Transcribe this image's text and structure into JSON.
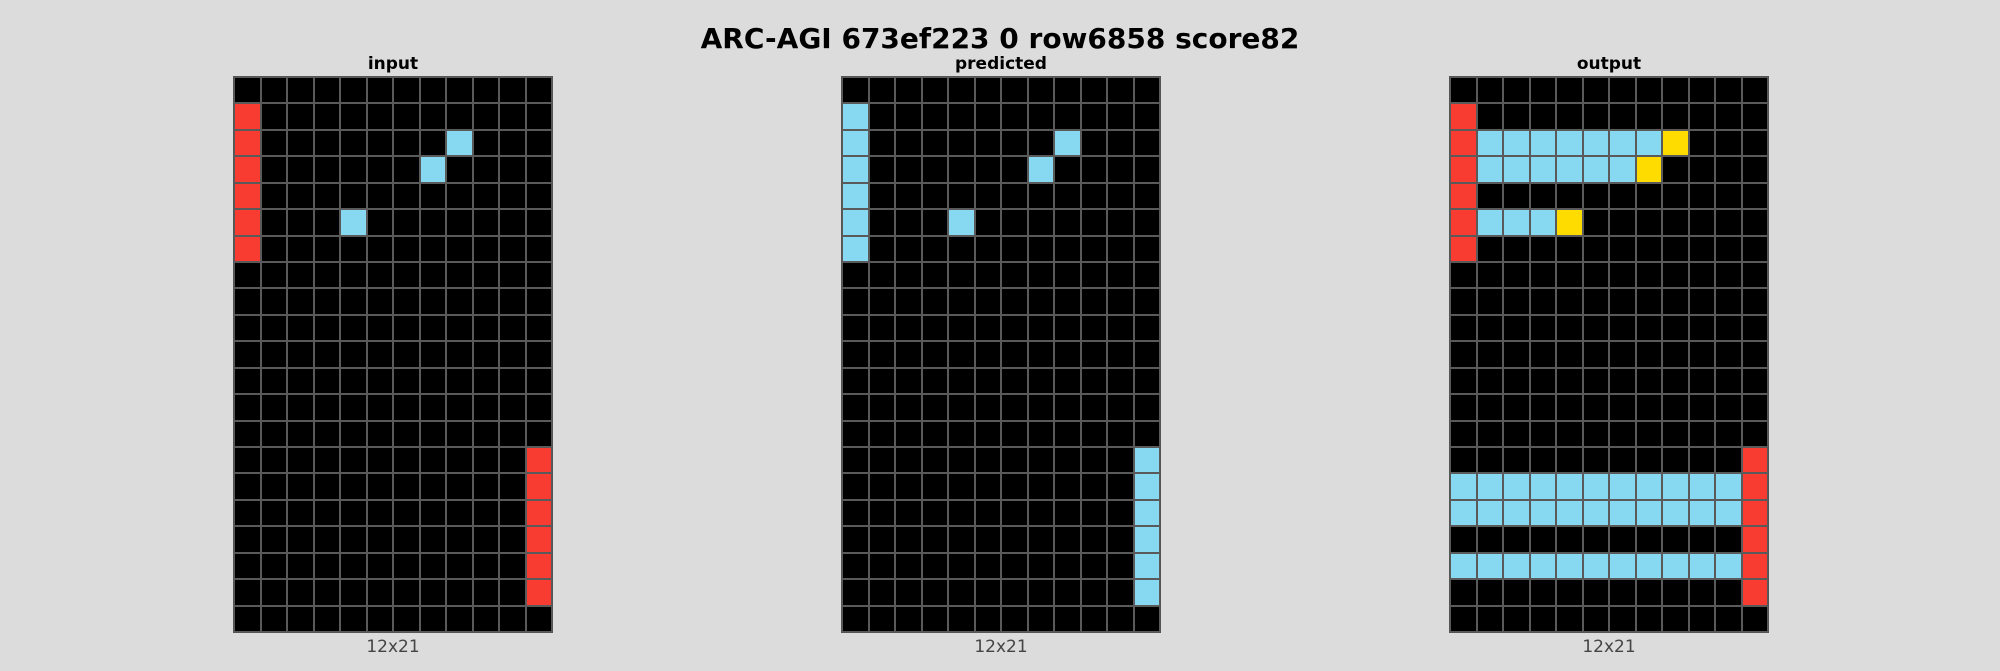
{
  "title": "ARC-AGI 673ef223 0 row6858 score82",
  "palette": {
    "0": "#000000",
    "1": "#1e93ff",
    "2": "#f93c31",
    "3": "#4fcc30",
    "4": "#ffdc00",
    "5": "#999999",
    "6": "#e53aa3",
    "7": "#ff851b",
    "8": "#87d8f1",
    "9": "#921231"
  },
  "panels": [
    {
      "title": "input",
      "caption": "12x21",
      "grid": [
        [
          0,
          0,
          0,
          0,
          0,
          0,
          0,
          0,
          0,
          0,
          0,
          0
        ],
        [
          2,
          0,
          0,
          0,
          0,
          0,
          0,
          0,
          0,
          0,
          0,
          0
        ],
        [
          2,
          0,
          0,
          0,
          0,
          0,
          0,
          0,
          8,
          0,
          0,
          0
        ],
        [
          2,
          0,
          0,
          0,
          0,
          0,
          0,
          8,
          0,
          0,
          0,
          0
        ],
        [
          2,
          0,
          0,
          0,
          0,
          0,
          0,
          0,
          0,
          0,
          0,
          0
        ],
        [
          2,
          0,
          0,
          0,
          8,
          0,
          0,
          0,
          0,
          0,
          0,
          0
        ],
        [
          2,
          0,
          0,
          0,
          0,
          0,
          0,
          0,
          0,
          0,
          0,
          0
        ],
        [
          0,
          0,
          0,
          0,
          0,
          0,
          0,
          0,
          0,
          0,
          0,
          0
        ],
        [
          0,
          0,
          0,
          0,
          0,
          0,
          0,
          0,
          0,
          0,
          0,
          0
        ],
        [
          0,
          0,
          0,
          0,
          0,
          0,
          0,
          0,
          0,
          0,
          0,
          0
        ],
        [
          0,
          0,
          0,
          0,
          0,
          0,
          0,
          0,
          0,
          0,
          0,
          0
        ],
        [
          0,
          0,
          0,
          0,
          0,
          0,
          0,
          0,
          0,
          0,
          0,
          0
        ],
        [
          0,
          0,
          0,
          0,
          0,
          0,
          0,
          0,
          0,
          0,
          0,
          0
        ],
        [
          0,
          0,
          0,
          0,
          0,
          0,
          0,
          0,
          0,
          0,
          0,
          0
        ],
        [
          0,
          0,
          0,
          0,
          0,
          0,
          0,
          0,
          0,
          0,
          0,
          2
        ],
        [
          0,
          0,
          0,
          0,
          0,
          0,
          0,
          0,
          0,
          0,
          0,
          2
        ],
        [
          0,
          0,
          0,
          0,
          0,
          0,
          0,
          0,
          0,
          0,
          0,
          2
        ],
        [
          0,
          0,
          0,
          0,
          0,
          0,
          0,
          0,
          0,
          0,
          0,
          2
        ],
        [
          0,
          0,
          0,
          0,
          0,
          0,
          0,
          0,
          0,
          0,
          0,
          2
        ],
        [
          0,
          0,
          0,
          0,
          0,
          0,
          0,
          0,
          0,
          0,
          0,
          2
        ],
        [
          0,
          0,
          0,
          0,
          0,
          0,
          0,
          0,
          0,
          0,
          0,
          0
        ]
      ]
    },
    {
      "title": "predicted",
      "caption": "12x21",
      "grid": [
        [
          0,
          0,
          0,
          0,
          0,
          0,
          0,
          0,
          0,
          0,
          0,
          0
        ],
        [
          8,
          0,
          0,
          0,
          0,
          0,
          0,
          0,
          0,
          0,
          0,
          0
        ],
        [
          8,
          0,
          0,
          0,
          0,
          0,
          0,
          0,
          8,
          0,
          0,
          0
        ],
        [
          8,
          0,
          0,
          0,
          0,
          0,
          0,
          8,
          0,
          0,
          0,
          0
        ],
        [
          8,
          0,
          0,
          0,
          0,
          0,
          0,
          0,
          0,
          0,
          0,
          0
        ],
        [
          8,
          0,
          0,
          0,
          8,
          0,
          0,
          0,
          0,
          0,
          0,
          0
        ],
        [
          8,
          0,
          0,
          0,
          0,
          0,
          0,
          0,
          0,
          0,
          0,
          0
        ],
        [
          0,
          0,
          0,
          0,
          0,
          0,
          0,
          0,
          0,
          0,
          0,
          0
        ],
        [
          0,
          0,
          0,
          0,
          0,
          0,
          0,
          0,
          0,
          0,
          0,
          0
        ],
        [
          0,
          0,
          0,
          0,
          0,
          0,
          0,
          0,
          0,
          0,
          0,
          0
        ],
        [
          0,
          0,
          0,
          0,
          0,
          0,
          0,
          0,
          0,
          0,
          0,
          0
        ],
        [
          0,
          0,
          0,
          0,
          0,
          0,
          0,
          0,
          0,
          0,
          0,
          0
        ],
        [
          0,
          0,
          0,
          0,
          0,
          0,
          0,
          0,
          0,
          0,
          0,
          0
        ],
        [
          0,
          0,
          0,
          0,
          0,
          0,
          0,
          0,
          0,
          0,
          0,
          0
        ],
        [
          0,
          0,
          0,
          0,
          0,
          0,
          0,
          0,
          0,
          0,
          0,
          8
        ],
        [
          0,
          0,
          0,
          0,
          0,
          0,
          0,
          0,
          0,
          0,
          0,
          8
        ],
        [
          0,
          0,
          0,
          0,
          0,
          0,
          0,
          0,
          0,
          0,
          0,
          8
        ],
        [
          0,
          0,
          0,
          0,
          0,
          0,
          0,
          0,
          0,
          0,
          0,
          8
        ],
        [
          0,
          0,
          0,
          0,
          0,
          0,
          0,
          0,
          0,
          0,
          0,
          8
        ],
        [
          0,
          0,
          0,
          0,
          0,
          0,
          0,
          0,
          0,
          0,
          0,
          8
        ],
        [
          0,
          0,
          0,
          0,
          0,
          0,
          0,
          0,
          0,
          0,
          0,
          0
        ]
      ]
    },
    {
      "title": "output",
      "caption": "12x21",
      "grid": [
        [
          0,
          0,
          0,
          0,
          0,
          0,
          0,
          0,
          0,
          0,
          0,
          0
        ],
        [
          2,
          0,
          0,
          0,
          0,
          0,
          0,
          0,
          0,
          0,
          0,
          0
        ],
        [
          2,
          8,
          8,
          8,
          8,
          8,
          8,
          8,
          4,
          0,
          0,
          0
        ],
        [
          2,
          8,
          8,
          8,
          8,
          8,
          8,
          4,
          0,
          0,
          0,
          0
        ],
        [
          2,
          0,
          0,
          0,
          0,
          0,
          0,
          0,
          0,
          0,
          0,
          0
        ],
        [
          2,
          8,
          8,
          8,
          4,
          0,
          0,
          0,
          0,
          0,
          0,
          0
        ],
        [
          2,
          0,
          0,
          0,
          0,
          0,
          0,
          0,
          0,
          0,
          0,
          0
        ],
        [
          0,
          0,
          0,
          0,
          0,
          0,
          0,
          0,
          0,
          0,
          0,
          0
        ],
        [
          0,
          0,
          0,
          0,
          0,
          0,
          0,
          0,
          0,
          0,
          0,
          0
        ],
        [
          0,
          0,
          0,
          0,
          0,
          0,
          0,
          0,
          0,
          0,
          0,
          0
        ],
        [
          0,
          0,
          0,
          0,
          0,
          0,
          0,
          0,
          0,
          0,
          0,
          0
        ],
        [
          0,
          0,
          0,
          0,
          0,
          0,
          0,
          0,
          0,
          0,
          0,
          0
        ],
        [
          0,
          0,
          0,
          0,
          0,
          0,
          0,
          0,
          0,
          0,
          0,
          0
        ],
        [
          0,
          0,
          0,
          0,
          0,
          0,
          0,
          0,
          0,
          0,
          0,
          0
        ],
        [
          0,
          0,
          0,
          0,
          0,
          0,
          0,
          0,
          0,
          0,
          0,
          2
        ],
        [
          8,
          8,
          8,
          8,
          8,
          8,
          8,
          8,
          8,
          8,
          8,
          2
        ],
        [
          8,
          8,
          8,
          8,
          8,
          8,
          8,
          8,
          8,
          8,
          8,
          2
        ],
        [
          0,
          0,
          0,
          0,
          0,
          0,
          0,
          0,
          0,
          0,
          0,
          2
        ],
        [
          8,
          8,
          8,
          8,
          8,
          8,
          8,
          8,
          8,
          8,
          8,
          2
        ],
        [
          0,
          0,
          0,
          0,
          0,
          0,
          0,
          0,
          0,
          0,
          0,
          2
        ],
        [
          0,
          0,
          0,
          0,
          0,
          0,
          0,
          0,
          0,
          0,
          0,
          0
        ]
      ]
    }
  ]
}
